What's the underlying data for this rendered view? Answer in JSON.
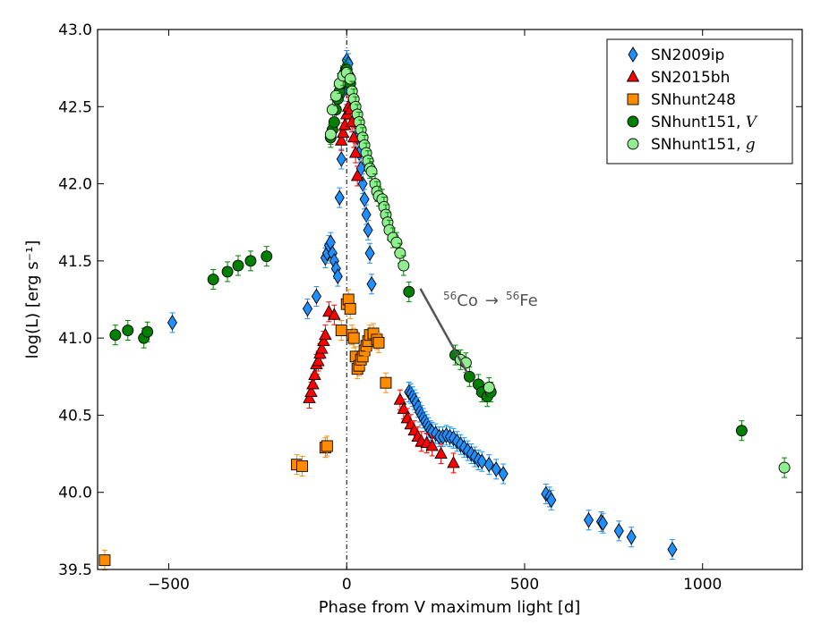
{
  "chart_data": {
    "type": "scatter",
    "title": "",
    "xlabel": "Phase from V maximum light [d]",
    "ylabel": "log(L) [erg s⁻¹]",
    "xlim": [
      -700,
      1280
    ],
    "ylim": [
      39.5,
      43.0
    ],
    "xticks": [
      -500,
      0,
      500,
      1000
    ],
    "xtick_labels": [
      "−500",
      "0",
      "500",
      "1000"
    ],
    "yticks": [
      39.5,
      40.0,
      40.5,
      41.0,
      41.5,
      42.0,
      42.5,
      43.0
    ],
    "ytick_labels": [
      "39.5",
      "40.0",
      "40.5",
      "41.0",
      "41.5",
      "42.0",
      "42.5",
      "43.0"
    ],
    "grid": false,
    "legend_position": "top-right",
    "vertical_line_x": 0,
    "annotation": {
      "text_sup1": "56",
      "text_main1": "Co",
      "text_arrow": "→",
      "text_sup2": "56",
      "text_main2": "Fe",
      "line": [
        [
          207,
          41.32
        ],
        [
          340,
          40.77
        ]
      ]
    },
    "series": [
      {
        "name": "SN2009ip",
        "marker": "diamond",
        "color": "#1e90ff",
        "x": [
          -490,
          -110,
          -85,
          -60,
          -55,
          -50,
          -45,
          -40,
          -35,
          -30,
          -25,
          -20,
          -15,
          -10,
          -5,
          0,
          5,
          10,
          15,
          20,
          25,
          30,
          35,
          40,
          45,
          50,
          55,
          60,
          65,
          70,
          175,
          180,
          185,
          190,
          195,
          200,
          205,
          210,
          215,
          220,
          225,
          230,
          235,
          240,
          250,
          260,
          270,
          280,
          290,
          300,
          310,
          320,
          330,
          340,
          350,
          360,
          370,
          380,
          400,
          420,
          440,
          560,
          570,
          575,
          680,
          715,
          720,
          765,
          800,
          915
        ],
        "y": [
          41.1,
          41.19,
          41.27,
          41.52,
          41.55,
          41.6,
          41.62,
          41.55,
          41.5,
          41.45,
          41.4,
          41.91,
          42.16,
          42.6,
          42.75,
          42.8,
          42.78,
          42.7,
          42.6,
          42.5,
          42.4,
          42.3,
          42.2,
          42.1,
          42.0,
          41.9,
          41.8,
          41.7,
          41.55,
          41.35,
          40.65,
          40.64,
          40.62,
          40.6,
          40.58,
          40.55,
          40.52,
          40.5,
          40.48,
          40.46,
          40.44,
          40.42,
          40.4,
          40.39,
          40.38,
          40.36,
          40.36,
          40.37,
          40.36,
          40.35,
          40.33,
          40.31,
          40.29,
          40.27,
          40.25,
          40.23,
          40.21,
          40.2,
          40.18,
          40.15,
          40.12,
          39.99,
          39.97,
          39.95,
          39.82,
          39.81,
          39.8,
          39.75,
          39.71,
          39.63
        ]
      },
      {
        "name": "SN2015bh",
        "marker": "triangle",
        "color": "#ff0000",
        "x": [
          -105,
          -100,
          -95,
          -90,
          -85,
          -80,
          -75,
          -70,
          -65,
          -60,
          -50,
          -35,
          -15,
          -10,
          -5,
          0,
          5,
          10,
          15,
          20,
          25,
          30,
          150,
          160,
          170,
          180,
          190,
          200,
          210,
          225,
          240,
          265,
          300
        ],
        "y": [
          40.61,
          40.65,
          40.7,
          40.76,
          40.83,
          40.85,
          40.9,
          40.93,
          40.98,
          41.02,
          41.17,
          41.15,
          42.28,
          42.33,
          42.38,
          42.45,
          42.5,
          42.48,
          42.4,
          42.3,
          42.2,
          42.05,
          40.6,
          40.54,
          40.48,
          40.44,
          40.4,
          40.36,
          40.33,
          40.32,
          40.3,
          40.25,
          40.19
        ]
      },
      {
        "name": "SNhunt248",
        "marker": "square",
        "color": "#ff8c00",
        "x": [
          -680,
          -140,
          -125,
          -60,
          -55,
          -15,
          0,
          5,
          10,
          15,
          20,
          25,
          30,
          35,
          40,
          45,
          50,
          55,
          60,
          65,
          75,
          85,
          90,
          110
        ],
        "y": [
          39.56,
          40.18,
          40.17,
          40.29,
          40.3,
          41.05,
          41.22,
          41.25,
          41.19,
          41.02,
          41.0,
          40.88,
          40.8,
          40.82,
          40.86,
          40.88,
          40.92,
          40.95,
          40.98,
          41.02,
          41.03,
          40.99,
          40.97,
          40.71
        ]
      },
      {
        "name": "SNhunt151, V",
        "marker": "circle",
        "color": "#008000",
        "x": [
          -650,
          -615,
          -570,
          -560,
          -375,
          -335,
          -305,
          -270,
          -225,
          -45,
          -40,
          -35,
          -30,
          -25,
          -20,
          -15,
          -10,
          -5,
          0,
          5,
          10,
          175,
          305,
          345,
          370,
          380,
          395,
          405,
          1110
        ],
        "y": [
          41.02,
          41.05,
          41.0,
          41.04,
          41.38,
          41.43,
          41.47,
          41.5,
          41.53,
          42.3,
          42.35,
          42.4,
          42.48,
          42.55,
          42.6,
          42.65,
          42.7,
          42.72,
          42.74,
          42.7,
          42.65,
          41.3,
          40.89,
          40.75,
          40.7,
          40.65,
          40.62,
          40.65,
          40.4
        ]
      },
      {
        "name": "SNhunt151, g",
        "marker": "circle",
        "color": "#90ee90",
        "x": [
          -45,
          -40,
          -30,
          -20,
          -10,
          0,
          10,
          15,
          20,
          25,
          30,
          35,
          40,
          45,
          50,
          55,
          60,
          65,
          70,
          80,
          85,
          90,
          100,
          105,
          110,
          115,
          120,
          130,
          140,
          150,
          160,
          320,
          335,
          400,
          1230
        ],
        "y": [
          42.32,
          42.48,
          42.57,
          42.65,
          42.7,
          42.72,
          42.68,
          42.6,
          42.55,
          42.5,
          42.45,
          42.4,
          42.35,
          42.3,
          42.25,
          42.2,
          42.15,
          42.1,
          42.08,
          42.0,
          41.95,
          41.92,
          41.9,
          41.85,
          41.8,
          41.75,
          41.7,
          41.65,
          41.62,
          41.55,
          41.47,
          40.86,
          40.84,
          40.68,
          40.16
        ]
      }
    ]
  }
}
